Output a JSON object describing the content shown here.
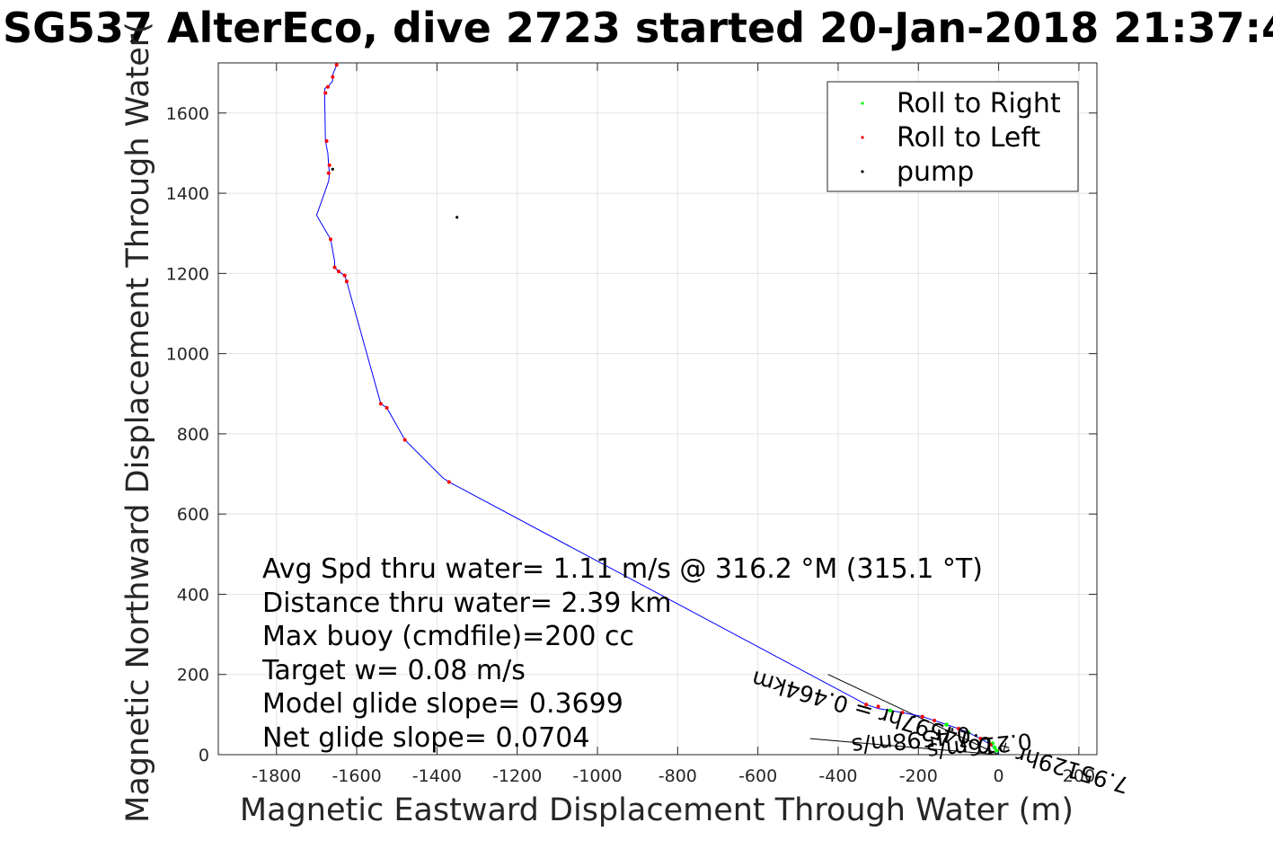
{
  "chart_data": {
    "type": "scatter",
    "title": "SG537 AlterEco, dive 2723 started 20-Jan-2018 21:37:4",
    "xlabel": "Magnetic Eastward Displacement Through Water (m)",
    "ylabel": "Magnetic Northward Displacement Through Water(",
    "xlim": [
      -1945,
      245
    ],
    "ylim": [
      0,
      1725
    ],
    "xticks": [
      -1800,
      -1600,
      -1400,
      -1200,
      -1000,
      -800,
      -600,
      -400,
      -200,
      0,
      200
    ],
    "yticks": [
      0,
      200,
      400,
      600,
      800,
      1000,
      1200,
      1400,
      1600
    ],
    "grid": true,
    "legend_position": "top-right",
    "legend": [
      {
        "label": "Roll to Right",
        "color": "#00ff00"
      },
      {
        "label": "Roll to Left",
        "color": "#ff0000"
      },
      {
        "label": "pump",
        "color": "#000000"
      }
    ],
    "track": {
      "name": "track",
      "color": "#0000ff",
      "x": [
        0,
        -5,
        -20,
        -45,
        -75,
        -100,
        -130,
        -160,
        -190,
        -215,
        -240,
        -270,
        -300,
        -330,
        -1370,
        -1385,
        -1480,
        -1525,
        -1540,
        -1625,
        -1630,
        -1645,
        -1655,
        -1655,
        -1665,
        -1700,
        -1670,
        -1668,
        -1670,
        -1672,
        -1678,
        -1680,
        -1680,
        -1675,
        -1672,
        -1660,
        -1660,
        -1650
      ],
      "y": [
        0,
        10,
        25,
        40,
        55,
        65,
        75,
        85,
        95,
        100,
        105,
        110,
        115,
        125,
        680,
        690,
        785,
        865,
        875,
        1180,
        1195,
        1205,
        1215,
        1230,
        1285,
        1345,
        1430,
        1450,
        1470,
        1500,
        1530,
        1650,
        1660,
        1665,
        1665,
        1680,
        1695,
        1720
      ]
    },
    "roll_left_points": {
      "x": [
        -1650,
        -1660,
        -1672,
        -1678,
        -1675,
        -1668,
        -1670,
        -1665,
        -1655,
        -1645,
        -1630,
        -1625,
        -1540,
        -1525,
        -1480,
        -1370,
        -330,
        -300,
        -240,
        -190,
        -160,
        -100,
        -45,
        -20
      ],
      "y": [
        1720,
        1690,
        1665,
        1650,
        1530,
        1470,
        1450,
        1285,
        1215,
        1205,
        1195,
        1180,
        875,
        865,
        785,
        680,
        125,
        120,
        105,
        95,
        85,
        65,
        40,
        25
      ]
    },
    "roll_right_points": {
      "x": [
        -5,
        -10,
        -15,
        -25,
        -75,
        -130,
        -270
      ],
      "y": [
        10,
        18,
        28,
        38,
        55,
        75,
        110
      ]
    },
    "pump_points": {
      "x": [
        -1660,
        -1350,
        -210
      ],
      "y": [
        1460,
        1340,
        95
      ]
    },
    "current_lines": [
      {
        "x": [
          0,
          -425
        ],
        "y": [
          0,
          200
        ]
      },
      {
        "x": [
          0,
          -470
        ],
        "y": [
          0,
          40
        ]
      }
    ],
    "annotations": [
      {
        "text": "Avg Spd thru water=  1.11 m/s @ 316.2 °M (315.1 °T)"
      },
      {
        "text": "Distance thru water=  2.39 km"
      },
      {
        "text": "Max buoy (cmdfile)=200 cc"
      },
      {
        "text": "Target w= 0.08 m/s"
      },
      {
        "text": "Model glide slope= 0.3699"
      },
      {
        "text": "Net glide slope= 0.0704"
      }
    ],
    "rotated_annotations": [
      {
        "text": "0.216m/s",
        "x": -50,
        "y": 40,
        "angle": 174
      },
      {
        "text": "0.4598m/s",
        "x": -220,
        "y": 55,
        "angle": 174
      },
      {
        "text": "7.95129hr ₊ 0.14597hr = 0.464km",
        "x": -140,
        "y": 75,
        "angle": 196
      }
    ]
  }
}
